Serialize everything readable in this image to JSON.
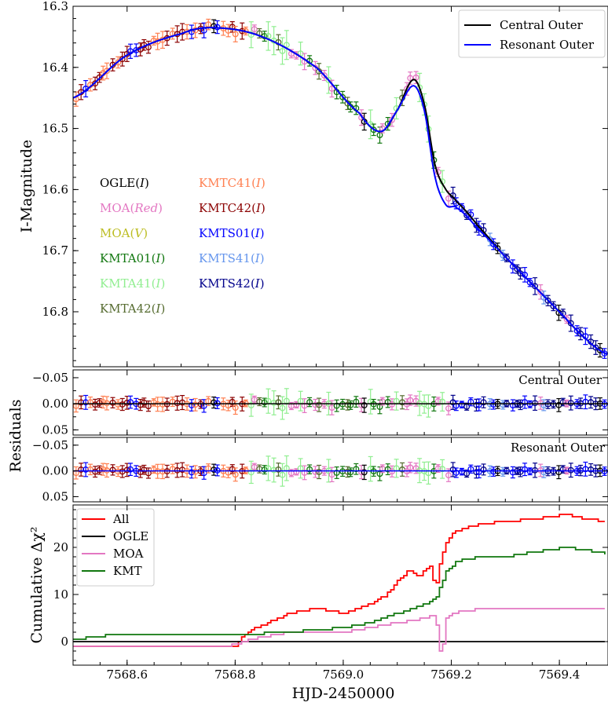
{
  "chart_data": [
    {
      "type": "scatter",
      "panel": "light-curve",
      "ylabel": "I-Magnitude",
      "xlim": [
        7568.5,
        7569.49
      ],
      "ylim": [
        16.3,
        16.89
      ],
      "y_inverted": true,
      "yticks": [
        "16.3",
        "16.4",
        "16.5",
        "16.6",
        "16.7",
        "16.8"
      ],
      "model_legend": [
        "Central Outer",
        "Resonant Outer"
      ],
      "model_legend_position": "top-right",
      "dataset_legend": [
        {
          "name": "OGLE",
          "band": "I",
          "color": "#000000"
        },
        {
          "name": "MOA",
          "band": "Red",
          "color": "#e377c2"
        },
        {
          "name": "MOA",
          "band": "V",
          "color": "#bcbd22"
        },
        {
          "name": "KMTA01",
          "band": "I",
          "color": "#11770f"
        },
        {
          "name": "KMTA41",
          "band": "I",
          "color": "#90ee90"
        },
        {
          "name": "KMTA42",
          "band": "I",
          "color": "#556b2f"
        },
        {
          "name": "KMTC41",
          "band": "I",
          "color": "#ff7f50"
        },
        {
          "name": "KMTC42",
          "band": "I",
          "color": "#8b0000"
        },
        {
          "name": "KMTS01",
          "band": "I",
          "color": "#0000ff"
        },
        {
          "name": "KMTS41",
          "band": "I",
          "color": "#6495ed"
        },
        {
          "name": "KMTS42",
          "band": "I",
          "color": "#00008b"
        }
      ],
      "model_colors": {
        "central": "#000000",
        "resonant": "#0000ff"
      },
      "model_key_points": {
        "x": [
          7568.5,
          7568.6,
          7568.7,
          7568.76,
          7568.85,
          7568.95,
          7569.03,
          7569.07,
          7569.1,
          7569.13,
          7569.15,
          7569.17,
          7569.19,
          7569.21,
          7569.25,
          7569.3,
          7569.35,
          7569.4,
          7569.45,
          7569.49
        ],
        "central_y": [
          16.45,
          16.38,
          16.345,
          16.335,
          16.35,
          16.4,
          16.475,
          16.505,
          16.47,
          16.42,
          16.46,
          16.56,
          16.6,
          16.62,
          16.66,
          16.71,
          16.755,
          16.8,
          16.845,
          16.87
        ],
        "resonant_y": [
          16.45,
          16.38,
          16.345,
          16.335,
          16.35,
          16.4,
          16.475,
          16.505,
          16.47,
          16.43,
          16.47,
          16.58,
          16.625,
          16.63,
          16.665,
          16.71,
          16.755,
          16.8,
          16.845,
          16.87
        ]
      }
    },
    {
      "type": "scatter",
      "panel": "residuals-central",
      "label": "Central Outer",
      "ylabel": "Residuals",
      "ylim": [
        -0.065,
        0.06
      ],
      "y_inverted": true,
      "yticks": [
        "−0.05",
        "0.00",
        "0.05"
      ]
    },
    {
      "type": "scatter",
      "panel": "residuals-resonant",
      "label": "Resonant Outer",
      "ylim": [
        -0.065,
        0.06
      ],
      "y_inverted": true,
      "yticks": [
        "−0.05",
        "0.00",
        "0.05"
      ]
    },
    {
      "type": "line",
      "panel": "cumulative-chi2",
      "ylabel": "Cumulative Δχ²",
      "xlabel": "HJD-2450000",
      "xlim": [
        7568.5,
        7569.49
      ],
      "ylim": [
        -5,
        29
      ],
      "yticks": [
        "0",
        "10",
        "20"
      ],
      "xticks": [
        "7568.6",
        "7568.8",
        "7569.0",
        "7569.2",
        "7569.4"
      ],
      "legend_position": "top-left",
      "series": [
        {
          "name": "All",
          "color": "#ff0000",
          "x": [
            7568.5,
            7568.8,
            7568.82,
            7568.86,
            7568.9,
            7568.95,
            7569.0,
            7569.05,
            7569.08,
            7569.1,
            7569.12,
            7569.14,
            7569.16,
            7569.17,
            7569.18,
            7569.19,
            7569.2,
            7569.22,
            7569.26,
            7569.3,
            7569.35,
            7569.41,
            7569.45,
            7569.49
          ],
          "values": [
            -1,
            -1,
            2,
            4,
            6,
            7,
            6,
            8,
            10,
            13,
            15,
            14,
            16,
            11,
            18,
            21,
            23,
            24,
            25,
            25.5,
            26,
            27,
            26,
            25.5
          ]
        },
        {
          "name": "OGLE",
          "color": "#000000",
          "x": [
            7568.5,
            7569.49
          ],
          "values": [
            0,
            0
          ]
        },
        {
          "name": "MOA",
          "color": "#e377c2",
          "x": [
            7568.5,
            7568.78,
            7568.85,
            7568.9,
            7568.95,
            7569.0,
            7569.05,
            7569.1,
            7569.15,
            7569.17,
            7569.18,
            7569.19,
            7569.2,
            7569.22,
            7569.26,
            7569.3,
            7569.49
          ],
          "values": [
            -1,
            -1,
            1,
            2,
            2,
            2,
            3,
            4,
            5,
            5.5,
            -4,
            5,
            6,
            6.5,
            7,
            7,
            7
          ]
        },
        {
          "name": "KMT",
          "color": "#11770f",
          "x": [
            7568.5,
            7568.58,
            7568.8,
            7568.9,
            7569.0,
            7569.05,
            7569.1,
            7569.15,
            7569.17,
            7569.19,
            7569.21,
            7569.25,
            7569.3,
            7569.35,
            7569.41,
            7569.45,
            7569.49
          ],
          "values": [
            0.5,
            1.5,
            1.5,
            2,
            3,
            4,
            6,
            8,
            9,
            15,
            17,
            18,
            18,
            19,
            20,
            19.5,
            18.5
          ]
        }
      ]
    }
  ]
}
